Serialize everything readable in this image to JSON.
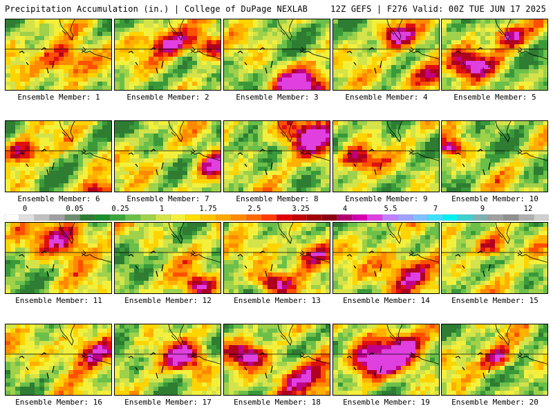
{
  "header": {
    "title_left": "Precipitation Accumulation (in.) | College of DuPage NEXLAB",
    "title_right": "12Z GEFS | F276 Valid: 00Z TUE JUN 17 2025"
  },
  "panels": [
    {
      "label": "Ensemble Member: 1",
      "seed": 11,
      "hot": [
        [
          0.55,
          0.55,
          0.18
        ]
      ]
    },
    {
      "label": "Ensemble Member: 2",
      "seed": 23,
      "hot": [
        [
          0.85,
          0.35,
          0.12
        ],
        [
          0.5,
          0.3,
          0.15
        ]
      ]
    },
    {
      "label": "Ensemble Member: 3",
      "seed": 37,
      "hot": [
        [
          0.7,
          0.9,
          0.2
        ]
      ]
    },
    {
      "label": "Ensemble Member: 4",
      "seed": 41,
      "hot": [
        [
          0.55,
          0.2,
          0.12
        ],
        [
          0.85,
          0.75,
          0.15
        ]
      ]
    },
    {
      "label": "Ensemble Member: 5",
      "seed": 53,
      "hot": [
        [
          0.6,
          0.2,
          0.12
        ],
        [
          0.2,
          0.6,
          0.15
        ]
      ]
    },
    {
      "label": "Ensemble Member: 6",
      "seed": 61,
      "hot": [
        [
          0.15,
          0.4,
          0.12
        ],
        [
          0.8,
          0.95,
          0.1
        ]
      ]
    },
    {
      "label": "Ensemble Member: 7",
      "seed": 73,
      "hot": [
        [
          0.9,
          0.6,
          0.15
        ]
      ]
    },
    {
      "label": "Ensemble Member: 8",
      "seed": 89,
      "hot": [
        [
          0.75,
          0.15,
          0.2
        ]
      ]
    },
    {
      "label": "Ensemble Member: 9",
      "seed": 97,
      "hot": [
        [
          0.2,
          0.5,
          0.12
        ]
      ]
    },
    {
      "label": "Ensemble Member: 10",
      "seed": 101,
      "hot": [
        [
          0.08,
          0.35,
          0.08
        ]
      ]
    },
    {
      "label": "Ensemble Member: 11",
      "seed": 113,
      "hot": [
        [
          0.55,
          0.2,
          0.2
        ]
      ]
    },
    {
      "label": "Ensemble Member: 12",
      "seed": 127,
      "hot": [
        [
          0.75,
          0.85,
          0.12
        ]
      ]
    },
    {
      "label": "Ensemble Member: 13",
      "seed": 131,
      "hot": [
        [
          0.8,
          0.4,
          0.15
        ],
        [
          0.4,
          0.8,
          0.12
        ]
      ]
    },
    {
      "label": "Ensemble Member: 14",
      "seed": 149,
      "hot": [
        [
          0.7,
          0.65,
          0.2
        ]
      ]
    },
    {
      "label": "Ensemble Member: 15",
      "seed": 151,
      "hot": [
        [
          0.45,
          0.3,
          0.12
        ]
      ]
    },
    {
      "label": "Ensemble Member: 16",
      "seed": 163,
      "hot": [
        [
          0.75,
          0.35,
          0.18
        ]
      ]
    },
    {
      "label": "Ensemble Member: 17",
      "seed": 173,
      "hot": [
        [
          0.65,
          0.45,
          0.15
        ]
      ]
    },
    {
      "label": "Ensemble Member: 18",
      "seed": 181,
      "hot": [
        [
          0.75,
          0.7,
          0.2
        ],
        [
          0.2,
          0.4,
          0.12
        ]
      ]
    },
    {
      "label": "Ensemble Member: 19",
      "seed": 191,
      "hot": [
        [
          0.6,
          0.3,
          0.2
        ],
        [
          0.3,
          0.5,
          0.15
        ]
      ]
    },
    {
      "label": "Ensemble Member: 20",
      "seed": 199,
      "hot": [
        [
          0.5,
          0.45,
          0.12
        ]
      ]
    }
  ],
  "colorbar": {
    "ticks": [
      "0",
      "0.05",
      "0.25",
      "1",
      "1.75",
      "2.5",
      "3.25",
      "4",
      "5.5",
      "7",
      "9",
      "12"
    ],
    "colors": [
      "#ffffff",
      "#e0e0e0",
      "#c0c0c0",
      "#a0a0a0",
      "#6e8c6e",
      "#2e7d32",
      "#1b8f2b",
      "#3aa63a",
      "#6cc04a",
      "#9fd14a",
      "#d4e34a",
      "#f3f03c",
      "#ffe000",
      "#ffc400",
      "#ffa800",
      "#ff8a00",
      "#ff6a00",
      "#ff3c00",
      "#e00000",
      "#c00000",
      "#a00000",
      "#8a0010",
      "#b0006e",
      "#d400b0",
      "#e040e0",
      "#c080ff",
      "#a0a0ff",
      "#80c0ff",
      "#40e0ff",
      "#00f0f0",
      "#40d0d0",
      "#80b0b0",
      "#a0a0a0",
      "#909090",
      "#b0b0b0",
      "#d0d0d0"
    ]
  }
}
